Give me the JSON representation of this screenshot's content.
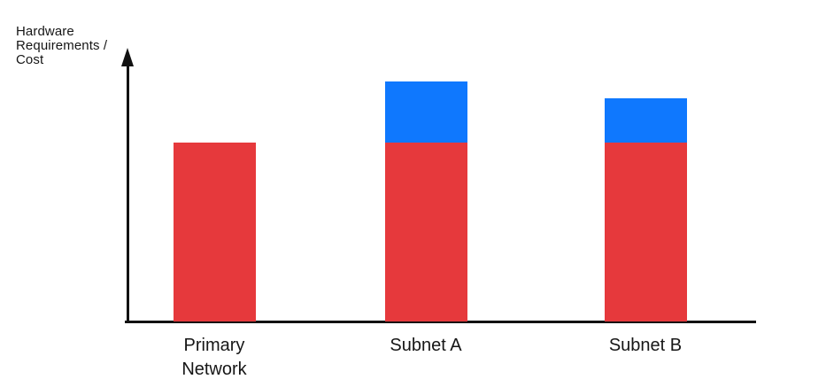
{
  "chart_data": {
    "type": "bar",
    "stacked": true,
    "title": "",
    "xlabel": "",
    "ylabel": "Hardware Requirements / Cost",
    "ylabel_lines": [
      "Hardware",
      "Requirements /",
      "Cost"
    ],
    "categories": [
      "Primary Network",
      "Subnet A",
      "Subnet B"
    ],
    "series": [
      {
        "name": "red-base-segment",
        "color": "#E6393C",
        "values": [
          100,
          100,
          100
        ]
      },
      {
        "name": "blue-top-segment",
        "color": "#0F78FE",
        "values": [
          0,
          34,
          25
        ]
      }
    ],
    "value_axis": {
      "ticks_shown": false,
      "units": "relative",
      "approx_range": [
        0,
        150
      ],
      "arrow_at_top": true
    },
    "grid": false,
    "legend": "none",
    "axis_color": "#121212",
    "text_color": "#161616",
    "background": "#ffffff"
  }
}
